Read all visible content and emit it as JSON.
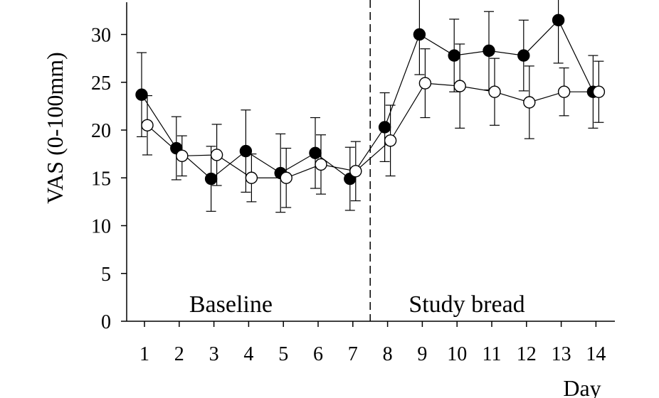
{
  "chart_data": {
    "type": "line",
    "title": "",
    "xlabel": "Day",
    "ylabel": "VAS (0-100mm)",
    "categories": [
      "1",
      "2",
      "3",
      "4",
      "5",
      "6",
      "7",
      "8",
      "9",
      "10",
      "11",
      "12",
      "13",
      "14"
    ],
    "x": [
      1,
      2,
      3,
      4,
      5,
      6,
      7,
      8,
      9,
      10,
      11,
      12,
      13,
      14
    ],
    "ylim": [
      0,
      33
    ],
    "yticks": [
      0,
      5,
      10,
      15,
      20,
      25,
      30
    ],
    "grid": false,
    "legend": "none",
    "phase_divider_x": 7.5,
    "regions": [
      {
        "label": "Baseline",
        "x_center": 4
      },
      {
        "label": "Study bread",
        "x_center": 11
      }
    ],
    "series": [
      {
        "marker": "filled-circle",
        "values": [
          23.7,
          18.1,
          14.9,
          17.8,
          15.5,
          17.6,
          14.9,
          20.3,
          30.0,
          27.8,
          28.3,
          27.8,
          31.5,
          24.0
        ],
        "error": [
          4.4,
          3.3,
          3.4,
          4.3,
          4.1,
          3.7,
          3.3,
          3.6,
          4.2,
          3.8,
          4.1,
          3.7,
          4.5,
          3.8
        ]
      },
      {
        "marker": "open-circle",
        "values": [
          20.5,
          17.3,
          17.4,
          15.0,
          15.0,
          16.4,
          15.7,
          18.9,
          24.9,
          24.6,
          24.0,
          22.9,
          24.0,
          24.0
        ],
        "error": [
          3.1,
          2.1,
          3.2,
          2.5,
          3.1,
          3.1,
          3.1,
          3.7,
          3.6,
          4.4,
          3.5,
          3.8,
          2.5,
          3.2
        ]
      }
    ],
    "colors": {
      "line": "#000000",
      "filled": "#000000",
      "open": "#ffffff"
    }
  }
}
